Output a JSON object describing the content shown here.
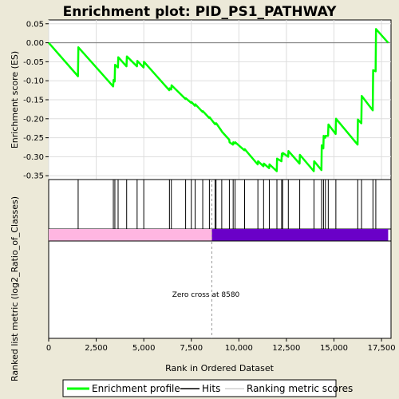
{
  "chart_data": {
    "type": "line",
    "title": "Enrichment plot: PID_PS1_PATHWAY",
    "ylabel_top": "Enrichment score (ES)",
    "ylabel_bottom": "Ranked list metric (log2_Ratio_of_Classes)",
    "xlabel": "Rank in Ordered Dataset",
    "xlim": [
      0,
      18000
    ],
    "ylim": [
      -0.36,
      0.06
    ],
    "x_ticks": [
      0,
      2500,
      5000,
      7500,
      10000,
      12500,
      15000,
      17500
    ],
    "x_tick_labels": [
      "0",
      "2,500",
      "5,000",
      "7,500",
      "10,000",
      "12,500",
      "15,000",
      "17,500"
    ],
    "y_ticks": [
      0.05,
      0.0,
      -0.05,
      -0.1,
      -0.15,
      -0.2,
      -0.25,
      -0.3,
      -0.35
    ],
    "y_tick_labels": [
      "0.05",
      "0.00",
      "-0.05",
      "-0.10",
      "-0.15",
      "-0.20",
      "-0.25",
      "-0.30",
      "-0.35"
    ],
    "zero_cross": 8580,
    "zero_cross_label": "Zero cross at 8580",
    "grid": true,
    "legend_position": "bottom",
    "colors": {
      "profile": "#00FF00",
      "hits": "#000000",
      "positive_metric": "#FFB6E1",
      "negative_metric": "#6A00C8",
      "zero_line": "#999999",
      "grid": "#DDDDDD"
    },
    "hits": [
      1550,
      3400,
      3480,
      3650,
      4100,
      4650,
      5000,
      6350,
      6450,
      7200,
      7500,
      7700,
      8100,
      8450,
      8750,
      8800,
      9100,
      9500,
      9700,
      9800,
      10300,
      11000,
      11300,
      11600,
      12000,
      12250,
      12300,
      12600,
      13200,
      13950,
      14350,
      14450,
      14550,
      14700,
      15100,
      16250,
      16450,
      17050,
      17200
    ],
    "es_profile": [
      [
        0,
        0.0
      ],
      [
        1540,
        -0.088
      ],
      [
        1560,
        -0.012
      ],
      [
        3390,
        -0.115
      ],
      [
        3410,
        -0.098
      ],
      [
        3470,
        -0.102
      ],
      [
        3490,
        -0.058
      ],
      [
        3640,
        -0.065
      ],
      [
        3660,
        -0.038
      ],
      [
        4090,
        -0.062
      ],
      [
        4110,
        -0.036
      ],
      [
        4640,
        -0.062
      ],
      [
        4660,
        -0.048
      ],
      [
        4990,
        -0.065
      ],
      [
        5010,
        -0.05
      ],
      [
        6340,
        -0.125
      ],
      [
        6360,
        -0.12
      ],
      [
        6440,
        -0.123
      ],
      [
        6460,
        -0.112
      ],
      [
        7190,
        -0.148
      ],
      [
        7210,
        -0.146
      ],
      [
        7490,
        -0.158
      ],
      [
        7510,
        -0.156
      ],
      [
        7690,
        -0.166
      ],
      [
        7710,
        -0.162
      ],
      [
        8090,
        -0.182
      ],
      [
        8110,
        -0.18
      ],
      [
        8440,
        -0.198
      ],
      [
        8460,
        -0.196
      ],
      [
        8740,
        -0.214
      ],
      [
        8760,
        -0.212
      ],
      [
        8790,
        -0.214
      ],
      [
        8810,
        -0.212
      ],
      [
        9090,
        -0.232
      ],
      [
        9110,
        -0.234
      ],
      [
        9490,
        -0.255
      ],
      [
        9510,
        -0.262
      ],
      [
        9690,
        -0.268
      ],
      [
        9710,
        -0.262
      ],
      [
        9790,
        -0.265
      ],
      [
        9810,
        -0.262
      ],
      [
        10290,
        -0.283
      ],
      [
        10310,
        -0.28
      ],
      [
        10990,
        -0.32
      ],
      [
        11010,
        -0.312
      ],
      [
        11290,
        -0.325
      ],
      [
        11310,
        -0.318
      ],
      [
        11590,
        -0.33
      ],
      [
        11610,
        -0.32
      ],
      [
        11990,
        -0.338
      ],
      [
        12010,
        -0.305
      ],
      [
        12240,
        -0.312
      ],
      [
        12260,
        -0.292
      ],
      [
        12290,
        -0.298
      ],
      [
        12310,
        -0.29
      ],
      [
        12590,
        -0.3
      ],
      [
        12610,
        -0.285
      ],
      [
        13190,
        -0.318
      ],
      [
        13210,
        -0.295
      ],
      [
        13940,
        -0.338
      ],
      [
        13960,
        -0.312
      ],
      [
        14340,
        -0.335
      ],
      [
        14360,
        -0.27
      ],
      [
        14440,
        -0.278
      ],
      [
        14460,
        -0.245
      ],
      [
        14540,
        -0.25
      ],
      [
        14560,
        -0.245
      ],
      [
        14690,
        -0.245
      ],
      [
        14710,
        -0.215
      ],
      [
        15090,
        -0.24
      ],
      [
        15110,
        -0.2
      ],
      [
        16240,
        -0.268
      ],
      [
        16260,
        -0.202
      ],
      [
        16440,
        -0.212
      ],
      [
        16460,
        -0.14
      ],
      [
        17040,
        -0.178
      ],
      [
        17060,
        -0.072
      ],
      [
        17190,
        -0.075
      ],
      [
        17210,
        0.036
      ],
      [
        17850,
        0.0
      ]
    ],
    "metric_band": {
      "positive_range": [
        0,
        8580
      ],
      "negative_range": [
        8580,
        17850
      ]
    },
    "legend": [
      {
        "key": "profile",
        "label": "Enrichment profile"
      },
      {
        "key": "hits",
        "label": "Hits"
      },
      {
        "key": "metric",
        "label": "Ranking metric scores"
      }
    ]
  }
}
